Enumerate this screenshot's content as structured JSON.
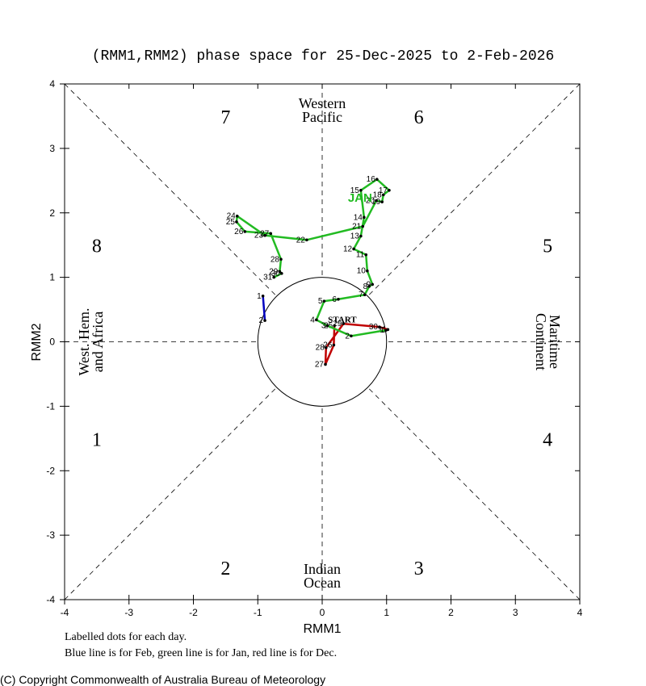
{
  "chart_data": {
    "type": "line",
    "title": "(RMM1,RMM2) phase space for 25-Dec-2025 to  2-Feb-2026",
    "xlabel": "RMM1",
    "ylabel": "RMM2",
    "xlim": [
      -4,
      4
    ],
    "ylim": [
      -4,
      4
    ],
    "xticks": [
      -4,
      -3,
      -2,
      -1,
      0,
      1,
      2,
      3,
      4
    ],
    "yticks": [
      -4,
      -3,
      -2,
      -1,
      0,
      1,
      2,
      3,
      4
    ],
    "series": [
      {
        "color": "#c00000",
        "labels": [
          "25",
          "26",
          "27",
          "28",
          "29",
          "30",
          "31"
        ],
        "x": [
          0.19,
          0.18,
          0.05,
          0.06,
          0.33,
          0.89,
          1.02
        ],
        "values": [
          0.25,
          -0.05,
          -0.35,
          -0.09,
          0.28,
          0.23,
          0.19
        ]
      },
      {
        "color": "#22bb22",
        "labels": [
          "1",
          "2",
          "3",
          "4",
          "5",
          "6",
          "7",
          "8",
          "9",
          "10",
          "11",
          "12",
          "13",
          "14",
          "15",
          "16",
          "17",
          "18",
          "19",
          "20",
          "21",
          "22",
          "23",
          "24",
          "25",
          "26",
          "27",
          "28",
          "29",
          "30",
          "31"
        ],
        "x": [
          0.99,
          0.45,
          0.08,
          -0.09,
          0.03,
          0.25,
          0.66,
          0.73,
          0.78,
          0.7,
          0.68,
          0.49,
          0.6,
          0.65,
          0.6,
          0.85,
          1.04,
          0.95,
          0.93,
          0.84,
          0.63,
          -0.24,
          -0.89,
          -1.32,
          -1.33,
          -1.2,
          -0.8,
          -0.64,
          -0.66,
          -0.63,
          -0.75
        ],
        "values": [
          0.18,
          0.09,
          0.25,
          0.34,
          0.63,
          0.66,
          0.73,
          0.86,
          0.89,
          1.1,
          1.35,
          1.44,
          1.64,
          1.93,
          2.35,
          2.52,
          2.35,
          2.28,
          2.17,
          2.19,
          1.79,
          1.58,
          1.65,
          1.95,
          1.86,
          1.71,
          1.68,
          1.28,
          1.09,
          1.06,
          1.0
        ]
      },
      {
        "color": "#0000c0",
        "labels": [
          "1",
          "2"
        ],
        "x": [
          -0.92,
          -0.89
        ],
        "values": [
          0.71,
          0.33
        ]
      }
    ],
    "start_label": "START",
    "month_label": "JAN",
    "phases": [
      "1",
      "2",
      "3",
      "4",
      "5",
      "6",
      "7",
      "8"
    ],
    "regions": [
      [
        "Western",
        "Pacific"
      ],
      [
        "Indian",
        "Ocean"
      ],
      [
        "West. Hem.",
        "and Africa"
      ],
      [
        "Maritime",
        "Continent"
      ]
    ],
    "notes": [
      "Labelled dots for each day.",
      "Blue line is for Feb, green line is for Jan, red line is for Dec."
    ],
    "copyright": "(C) Copyright Commonwealth of Australia Bureau of Meteorology"
  }
}
